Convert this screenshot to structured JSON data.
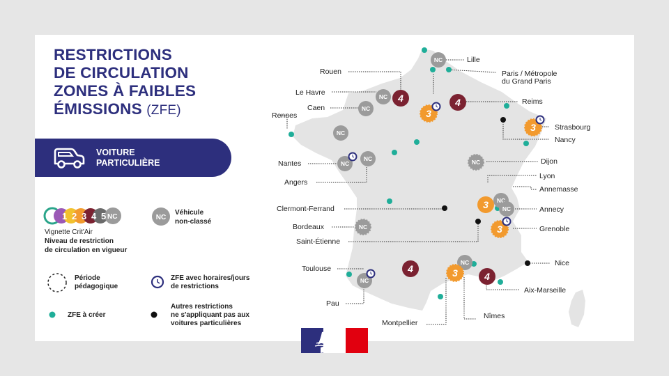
{
  "title": {
    "line1": "RESTRICTIONS",
    "line2": "DE CIRCULATION",
    "line3": "ZONES À FAIBLES",
    "line4": "ÉMISSIONS",
    "line4_suffix": "(ZFE)"
  },
  "vehicle": {
    "line1": "VOITURE",
    "line2": "PARTICULIÈRE",
    "icon": "car-icon"
  },
  "legend": {
    "critair_numbers": [
      "1",
      "2",
      "3",
      "4",
      "5",
      "NC"
    ],
    "critair_colors": [
      "#2aa58a",
      "#9b59b6",
      "#f2c12e",
      "#f29a2e",
      "#7b2231",
      "#6b6b6b",
      "#9b9b9b"
    ],
    "critair_caption": "Vignette Crit'Air",
    "critair_desc1": "Niveau de restriction",
    "critair_desc2": "de circulation en vigueur",
    "nc_badge": "NC",
    "nc_line1": "Véhicule",
    "nc_line2": "non-classé",
    "period_line1": "Période",
    "period_line2": "pédagogique",
    "hours_line1": "ZFE avec horaires/jours",
    "hours_line2": "de restrictions",
    "create_label": "ZFE à créer",
    "other_line1": "Autres restrictions",
    "other_line2": "ne s'appliquant pas aux",
    "other_line3": "voitures particulières"
  },
  "cities": {
    "lille": "Lille",
    "paris1": "Paris / Métropole",
    "paris2": "du Grand Paris",
    "rouen": "Rouen",
    "lehavre": "Le Havre",
    "caen": "Caen",
    "rennes": "Rennes",
    "reims": "Reims",
    "strasbourg": "Strasbourg",
    "nancy": "Nancy",
    "dijon": "Dijon",
    "nantes": "Nantes",
    "angers": "Angers",
    "lyon": "Lyon",
    "annemasse": "Annemasse",
    "annecy": "Annecy",
    "clermont": "Clermont-Ferrand",
    "bordeaux": "Bordeaux",
    "grenoble": "Grenoble",
    "saintetienne": "Saint-Étienne",
    "nice": "Nice",
    "toulouse": "Toulouse",
    "aixmarseille": "Aix-Marseille",
    "pau": "Pau",
    "nimes": "Nîmes",
    "montpellier": "Montpellier"
  },
  "badges": {
    "nc": "NC",
    "four": "4",
    "three": "3"
  },
  "colors": {
    "navy": "#2d2f7d",
    "crit4": "#7b2231",
    "crit3": "#f29a2e",
    "nc": "#9b9b9b",
    "create": "#1fae99",
    "map": "#e4e4e4"
  }
}
